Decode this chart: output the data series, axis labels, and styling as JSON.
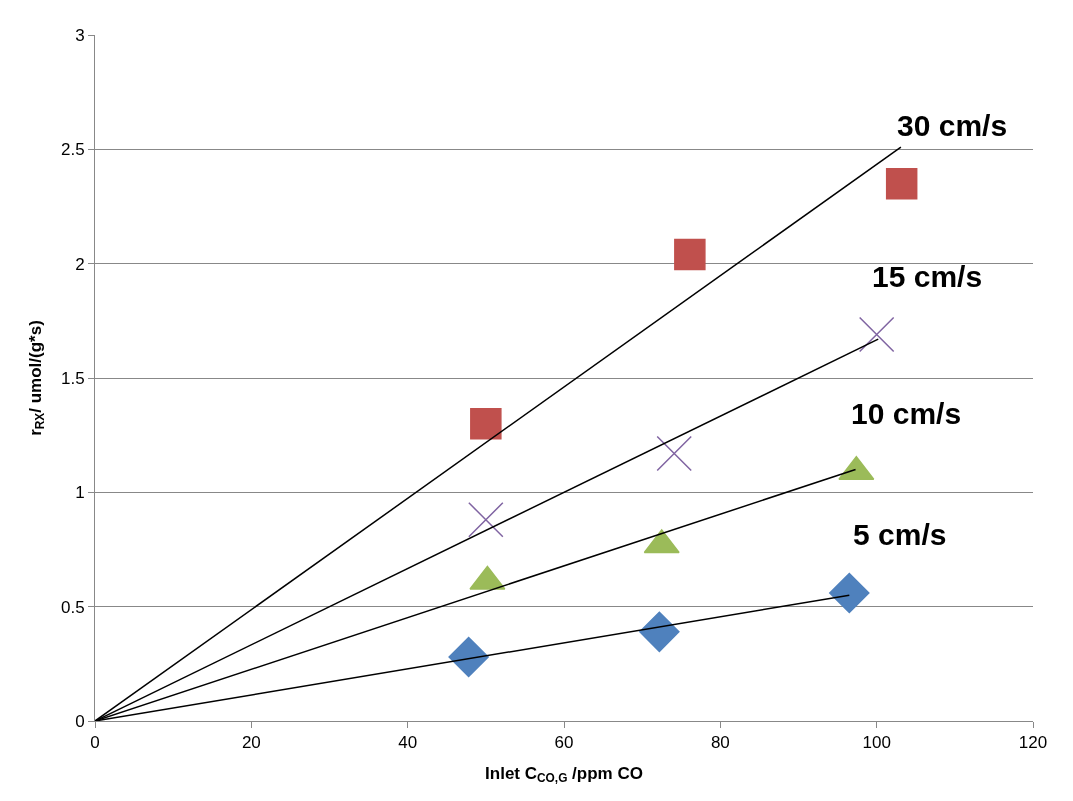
{
  "chart_data": {
    "type": "scatter",
    "xlabel": "Inlet C$_{CO,G}$ /ppm CO",
    "ylabel": "r$_{RX}$/ umol/(g*s)",
    "xlim": [
      0,
      120
    ],
    "xticks": [
      0,
      20,
      40,
      60,
      80,
      100,
      120
    ],
    "ylim": [
      0,
      3
    ],
    "yticks": [
      0,
      0.5,
      1,
      1.5,
      2,
      2.5,
      3
    ],
    "grid": "y",
    "series": [
      {
        "name": "30 cm/s",
        "marker": "square",
        "color": "#c0504d",
        "x": [
          50.0,
          76.1,
          103.2
        ],
        "values": [
          1.3,
          2.04,
          2.35
        ]
      },
      {
        "name": "15 cm/s",
        "marker": "cross",
        "color": "#8064a2",
        "x": [
          50.0,
          74.1,
          100.0
        ],
        "values": [
          0.88,
          1.17,
          1.69
        ]
      },
      {
        "name": "10 cm/s",
        "marker": "triangle",
        "color": "#9bbb59",
        "x": [
          50.2,
          72.5,
          97.4
        ],
        "values": [
          0.61,
          0.77,
          1.09
        ]
      },
      {
        "name": "5 cm/s",
        "marker": "diamond",
        "color": "#4f81bd",
        "x": [
          47.8,
          72.2,
          96.5
        ],
        "values": [
          0.28,
          0.39,
          0.56
        ]
      },
      {
        "type": "line",
        "marker": "none",
        "color": "#000000",
        "x": [
          0,
          103.1
        ],
        "values": [
          0,
          2.51
        ]
      },
      {
        "type": "line",
        "marker": "none",
        "color": "#000000",
        "x": [
          0,
          100.2
        ],
        "values": [
          0,
          1.67
        ]
      },
      {
        "type": "line",
        "marker": "none",
        "color": "#000000",
        "x": [
          0,
          97.3
        ],
        "values": [
          0,
          1.1
        ]
      },
      {
        "type": "line",
        "marker": "none",
        "color": "#000000",
        "x": [
          0,
          96.5
        ],
        "values": [
          0,
          0.55
        ]
      }
    ]
  }
}
